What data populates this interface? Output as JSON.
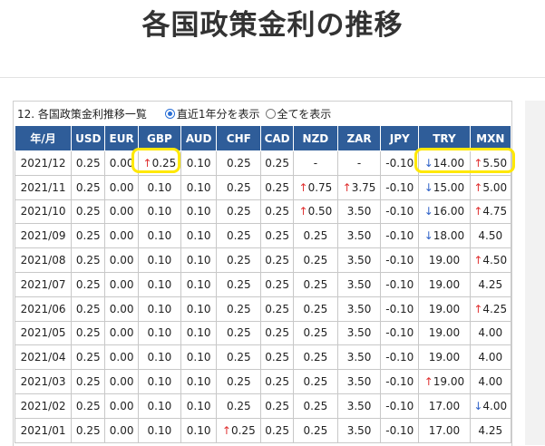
{
  "title": "各国政策金利の推移",
  "panel": {
    "caption": "12. 各国政策金利推移一覧",
    "radio_recent": "直近1年分を表示",
    "radio_all": "全てを表示",
    "selected": "recent"
  },
  "table": {
    "headers": [
      "年/月",
      "USD",
      "EUR",
      "GBP",
      "AUD",
      "CHF",
      "CAD",
      "NZD",
      "ZAR",
      "JPY",
      "TRY",
      "MXN"
    ],
    "rows": [
      [
        "2021/12",
        "0.25",
        "0.00",
        "↑0.25",
        "0.10",
        "0.25",
        "0.25",
        "-",
        "-",
        "-0.10",
        "↓14.00",
        "↑5.50"
      ],
      [
        "2021/11",
        "0.25",
        "0.00",
        "0.10",
        "0.10",
        "0.25",
        "0.25",
        "↑0.75",
        "↑3.75",
        "-0.10",
        "↓15.00",
        "↑5.00"
      ],
      [
        "2021/10",
        "0.25",
        "0.00",
        "0.10",
        "0.10",
        "0.25",
        "0.25",
        "↑0.50",
        "3.50",
        "-0.10",
        "↓16.00",
        "↑4.75"
      ],
      [
        "2021/09",
        "0.25",
        "0.00",
        "0.10",
        "0.10",
        "0.25",
        "0.25",
        "0.25",
        "3.50",
        "-0.10",
        "↓18.00",
        "4.50"
      ],
      [
        "2021/08",
        "0.25",
        "0.00",
        "0.10",
        "0.10",
        "0.25",
        "0.25",
        "0.25",
        "3.50",
        "-0.10",
        "19.00",
        "↑4.50"
      ],
      [
        "2021/07",
        "0.25",
        "0.00",
        "0.10",
        "0.10",
        "0.25",
        "0.25",
        "0.25",
        "3.50",
        "-0.10",
        "19.00",
        "4.25"
      ],
      [
        "2021/06",
        "0.25",
        "0.00",
        "0.10",
        "0.10",
        "0.25",
        "0.25",
        "0.25",
        "3.50",
        "-0.10",
        "19.00",
        "↑4.25"
      ],
      [
        "2021/05",
        "0.25",
        "0.00",
        "0.10",
        "0.10",
        "0.25",
        "0.25",
        "0.25",
        "3.50",
        "-0.10",
        "19.00",
        "4.00"
      ],
      [
        "2021/04",
        "0.25",
        "0.00",
        "0.10",
        "0.10",
        "0.25",
        "0.25",
        "0.25",
        "3.50",
        "-0.10",
        "19.00",
        "4.00"
      ],
      [
        "2021/03",
        "0.25",
        "0.00",
        "0.10",
        "0.10",
        "0.25",
        "0.25",
        "0.25",
        "3.50",
        "-0.10",
        "↑19.00",
        "4.00"
      ],
      [
        "2021/02",
        "0.25",
        "0.00",
        "0.10",
        "0.10",
        "0.25",
        "0.25",
        "0.25",
        "3.50",
        "-0.10",
        "17.00",
        "↓4.00"
      ],
      [
        "2021/01",
        "0.25",
        "0.00",
        "0.10",
        "0.10",
        "↑0.25",
        "0.25",
        "0.25",
        "3.50",
        "-0.10",
        "17.00",
        "4.25"
      ]
    ]
  },
  "colors": {
    "header_bg": "#2f5d99",
    "up_arrow": "#e03030",
    "down_arrow": "#2f62c8",
    "highlight": "#ffe800"
  }
}
